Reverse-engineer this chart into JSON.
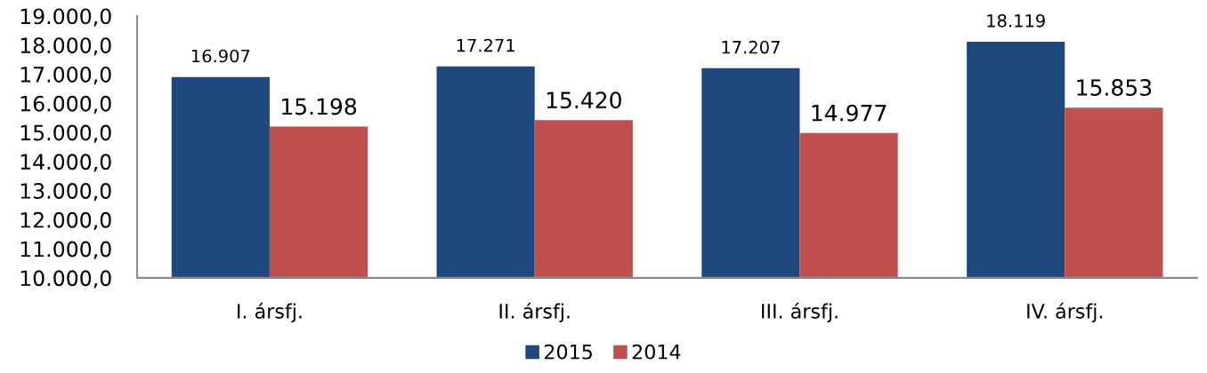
{
  "chart_data": {
    "type": "bar",
    "categories": [
      "I. ársfj.",
      "II. ársfj.",
      "III. ársfj.",
      "IV. ársfj."
    ],
    "series": [
      {
        "name": "2015",
        "color": "#1f497d",
        "values": [
          16907,
          17271,
          17207,
          18119
        ],
        "value_labels": [
          "16.907",
          "17.271",
          "17.207",
          "18.119"
        ]
      },
      {
        "name": "2014",
        "color": "#c0504d",
        "values": [
          15198,
          15420,
          14977,
          15853
        ],
        "value_labels": [
          "15.198",
          "15.420",
          "14.977",
          "15.853"
        ]
      }
    ],
    "ylim": [
      10000,
      19000
    ],
    "yticks": [
      {
        "value": 10000,
        "label": "10.000,0"
      },
      {
        "value": 11000,
        "label": "11.000,0"
      },
      {
        "value": 12000,
        "label": "12.000,0"
      },
      {
        "value": 13000,
        "label": "13.000,0"
      },
      {
        "value": 14000,
        "label": "14.000,0"
      },
      {
        "value": 15000,
        "label": "15.000,0"
      },
      {
        "value": 16000,
        "label": "16.000,0"
      },
      {
        "value": 17000,
        "label": "17.000,0"
      },
      {
        "value": 18000,
        "label": "18.000,0"
      },
      {
        "value": 19000,
        "label": "19.000,0"
      }
    ],
    "grid": false,
    "legend": "bottom"
  }
}
